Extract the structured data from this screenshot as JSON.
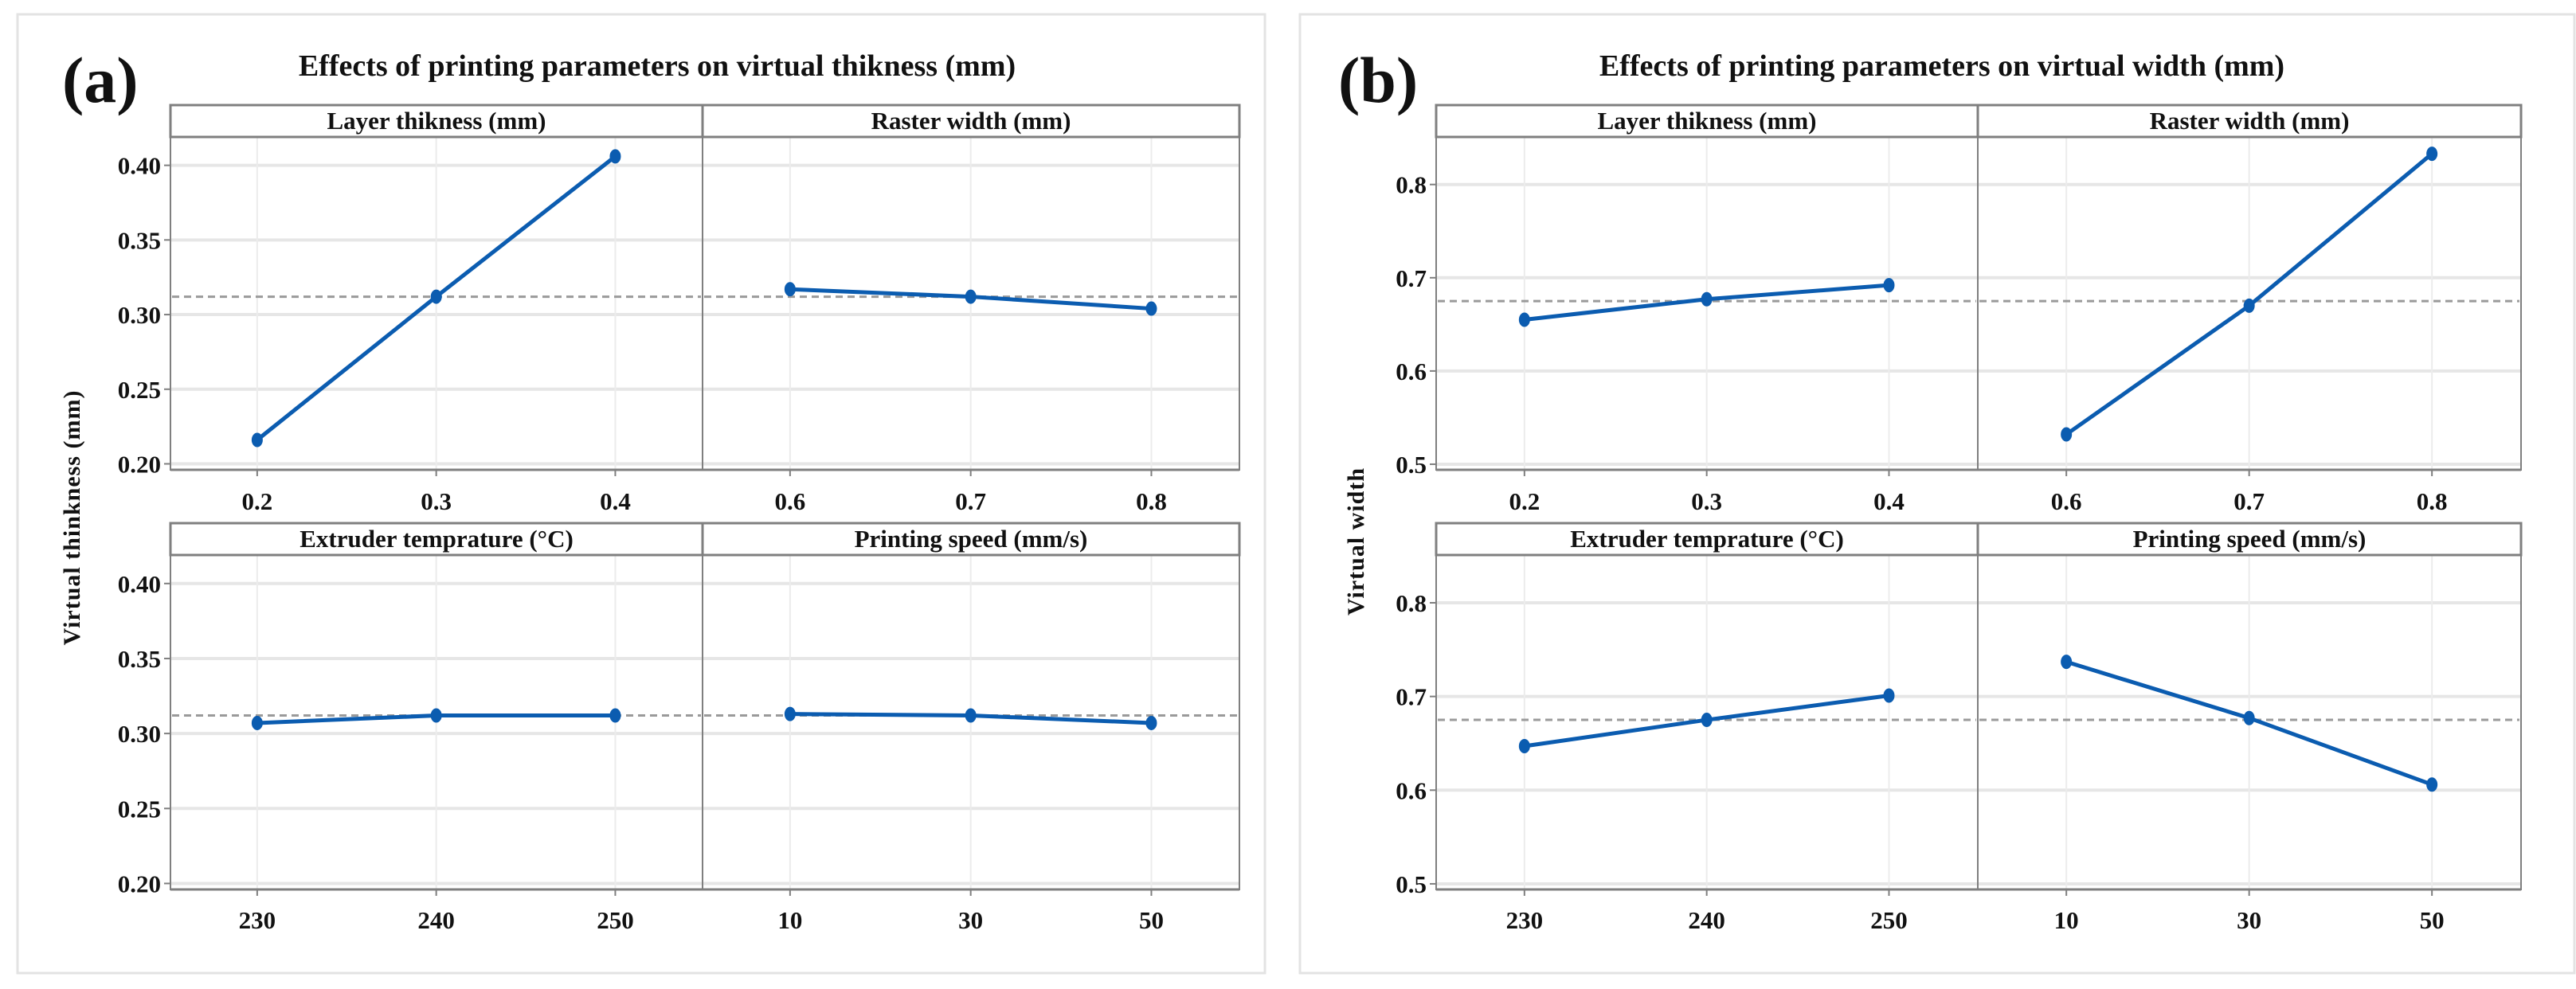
{
  "chart_data": [
    {
      "type": "line",
      "panel_label": "(a)",
      "title": "Effects of printing parameters on virtual thikness (mm)",
      "ylabel": "Virtual thinkness (mm)",
      "ylim": [
        0.196,
        0.419
      ],
      "yticks": [
        0.2,
        0.25,
        0.3,
        0.35,
        0.4
      ],
      "ytick_labels": [
        "0.20",
        "0.25",
        "0.30",
        "0.35",
        "0.40"
      ],
      "mean": 0.312,
      "grid": true,
      "facets": [
        {
          "name": "Layer thikness (mm)",
          "categories": [
            "0.2",
            "0.3",
            "0.4"
          ],
          "values": [
            0.216,
            0.312,
            0.406
          ]
        },
        {
          "name": "Raster width (mm)",
          "categories": [
            "0.6",
            "0.7",
            "0.8"
          ],
          "values": [
            0.317,
            0.312,
            0.304
          ]
        },
        {
          "name": "Extruder temprature (°C)",
          "categories": [
            "230",
            "240",
            "250"
          ],
          "values": [
            0.307,
            0.312,
            0.312
          ]
        },
        {
          "name": "Printing speed (mm/s)",
          "categories": [
            "10",
            "30",
            "50"
          ],
          "values": [
            0.313,
            0.312,
            0.307
          ]
        }
      ]
    },
    {
      "type": "line",
      "panel_label": "(b)",
      "title": "Effects of printing parameters on virtual width (mm)",
      "ylabel": "Virtual width",
      "ylim": [
        0.494,
        0.851
      ],
      "yticks": [
        0.5,
        0.6,
        0.7,
        0.8
      ],
      "ytick_labels": [
        "0.5",
        "0.6",
        "0.7",
        "0.8"
      ],
      "mean": 0.675,
      "grid": true,
      "facets": [
        {
          "name": "Layer thikness (mm)",
          "categories": [
            "0.2",
            "0.3",
            "0.4"
          ],
          "values": [
            0.655,
            0.677,
            0.692
          ]
        },
        {
          "name": "Raster width (mm)",
          "categories": [
            "0.6",
            "0.7",
            "0.8"
          ],
          "values": [
            0.532,
            0.67,
            0.833
          ]
        },
        {
          "name": "Extruder temprature (°C)",
          "categories": [
            "230",
            "240",
            "250"
          ],
          "values": [
            0.647,
            0.675,
            0.701
          ]
        },
        {
          "name": "Printing speed (mm/s)",
          "categories": [
            "10",
            "30",
            "50"
          ],
          "values": [
            0.737,
            0.677,
            0.606
          ]
        }
      ]
    }
  ],
  "colors": {
    "line": "#0b5cb0",
    "mean": "#9a9a9a",
    "grid": "#e6e6e6",
    "frame": "#7f7f7f"
  }
}
